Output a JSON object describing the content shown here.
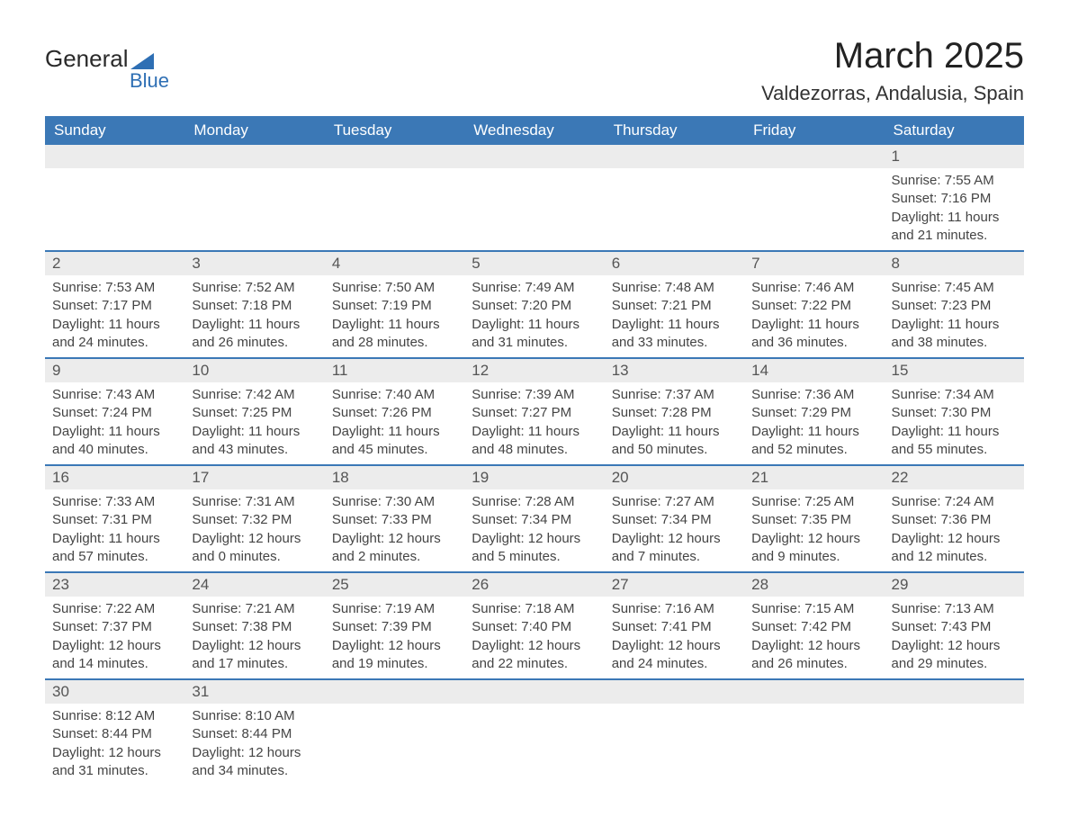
{
  "logo": {
    "word1": "General",
    "word2": "Blue"
  },
  "title": "March 2025",
  "location": "Valdezorras, Andalusia, Spain",
  "colors": {
    "header_bg": "#3b78b6",
    "header_text": "#ffffff",
    "row_divider": "#3b78b6",
    "daynum_bg": "#ececec",
    "body_text": "#444444",
    "logo_accent": "#2e6fb4"
  },
  "weekdays": [
    "Sunday",
    "Monday",
    "Tuesday",
    "Wednesday",
    "Thursday",
    "Friday",
    "Saturday"
  ],
  "weeks": [
    [
      null,
      null,
      null,
      null,
      null,
      null,
      {
        "n": "1",
        "sunrise": "7:55 AM",
        "sunset": "7:16 PM",
        "dl": "11 hours and 21 minutes."
      }
    ],
    [
      {
        "n": "2",
        "sunrise": "7:53 AM",
        "sunset": "7:17 PM",
        "dl": "11 hours and 24 minutes."
      },
      {
        "n": "3",
        "sunrise": "7:52 AM",
        "sunset": "7:18 PM",
        "dl": "11 hours and 26 minutes."
      },
      {
        "n": "4",
        "sunrise": "7:50 AM",
        "sunset": "7:19 PM",
        "dl": "11 hours and 28 minutes."
      },
      {
        "n": "5",
        "sunrise": "7:49 AM",
        "sunset": "7:20 PM",
        "dl": "11 hours and 31 minutes."
      },
      {
        "n": "6",
        "sunrise": "7:48 AM",
        "sunset": "7:21 PM",
        "dl": "11 hours and 33 minutes."
      },
      {
        "n": "7",
        "sunrise": "7:46 AM",
        "sunset": "7:22 PM",
        "dl": "11 hours and 36 minutes."
      },
      {
        "n": "8",
        "sunrise": "7:45 AM",
        "sunset": "7:23 PM",
        "dl": "11 hours and 38 minutes."
      }
    ],
    [
      {
        "n": "9",
        "sunrise": "7:43 AM",
        "sunset": "7:24 PM",
        "dl": "11 hours and 40 minutes."
      },
      {
        "n": "10",
        "sunrise": "7:42 AM",
        "sunset": "7:25 PM",
        "dl": "11 hours and 43 minutes."
      },
      {
        "n": "11",
        "sunrise": "7:40 AM",
        "sunset": "7:26 PM",
        "dl": "11 hours and 45 minutes."
      },
      {
        "n": "12",
        "sunrise": "7:39 AM",
        "sunset": "7:27 PM",
        "dl": "11 hours and 48 minutes."
      },
      {
        "n": "13",
        "sunrise": "7:37 AM",
        "sunset": "7:28 PM",
        "dl": "11 hours and 50 minutes."
      },
      {
        "n": "14",
        "sunrise": "7:36 AM",
        "sunset": "7:29 PM",
        "dl": "11 hours and 52 minutes."
      },
      {
        "n": "15",
        "sunrise": "7:34 AM",
        "sunset": "7:30 PM",
        "dl": "11 hours and 55 minutes."
      }
    ],
    [
      {
        "n": "16",
        "sunrise": "7:33 AM",
        "sunset": "7:31 PM",
        "dl": "11 hours and 57 minutes."
      },
      {
        "n": "17",
        "sunrise": "7:31 AM",
        "sunset": "7:32 PM",
        "dl": "12 hours and 0 minutes."
      },
      {
        "n": "18",
        "sunrise": "7:30 AM",
        "sunset": "7:33 PM",
        "dl": "12 hours and 2 minutes."
      },
      {
        "n": "19",
        "sunrise": "7:28 AM",
        "sunset": "7:34 PM",
        "dl": "12 hours and 5 minutes."
      },
      {
        "n": "20",
        "sunrise": "7:27 AM",
        "sunset": "7:34 PM",
        "dl": "12 hours and 7 minutes."
      },
      {
        "n": "21",
        "sunrise": "7:25 AM",
        "sunset": "7:35 PM",
        "dl": "12 hours and 9 minutes."
      },
      {
        "n": "22",
        "sunrise": "7:24 AM",
        "sunset": "7:36 PM",
        "dl": "12 hours and 12 minutes."
      }
    ],
    [
      {
        "n": "23",
        "sunrise": "7:22 AM",
        "sunset": "7:37 PM",
        "dl": "12 hours and 14 minutes."
      },
      {
        "n": "24",
        "sunrise": "7:21 AM",
        "sunset": "7:38 PM",
        "dl": "12 hours and 17 minutes."
      },
      {
        "n": "25",
        "sunrise": "7:19 AM",
        "sunset": "7:39 PM",
        "dl": "12 hours and 19 minutes."
      },
      {
        "n": "26",
        "sunrise": "7:18 AM",
        "sunset": "7:40 PM",
        "dl": "12 hours and 22 minutes."
      },
      {
        "n": "27",
        "sunrise": "7:16 AM",
        "sunset": "7:41 PM",
        "dl": "12 hours and 24 minutes."
      },
      {
        "n": "28",
        "sunrise": "7:15 AM",
        "sunset": "7:42 PM",
        "dl": "12 hours and 26 minutes."
      },
      {
        "n": "29",
        "sunrise": "7:13 AM",
        "sunset": "7:43 PM",
        "dl": "12 hours and 29 minutes."
      }
    ],
    [
      {
        "n": "30",
        "sunrise": "8:12 AM",
        "sunset": "8:44 PM",
        "dl": "12 hours and 31 minutes."
      },
      {
        "n": "31",
        "sunrise": "8:10 AM",
        "sunset": "8:44 PM",
        "dl": "12 hours and 34 minutes."
      },
      null,
      null,
      null,
      null,
      null
    ]
  ],
  "labels": {
    "sunrise_prefix": "Sunrise: ",
    "sunset_prefix": "Sunset: ",
    "daylight_prefix": "Daylight: "
  }
}
